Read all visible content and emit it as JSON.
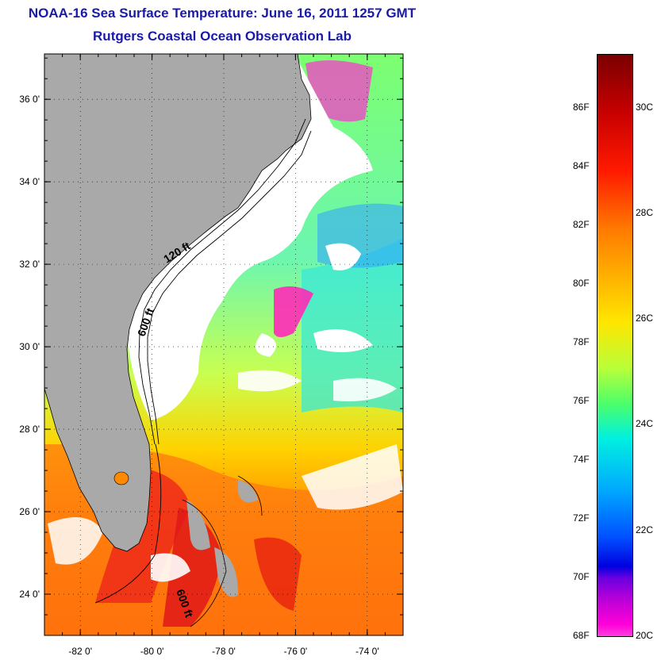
{
  "header": {
    "title": "NOAA-16 Sea Surface Temperature:  June 16, 2011 1257 GMT",
    "subtitle": "Rutgers Coastal Ocean Observation Lab"
  },
  "map": {
    "lat_range": [
      23,
      37.1
    ],
    "lon_range": [
      -83,
      -73
    ],
    "lat_ticks": [
      {
        "v": 36,
        "label": "36 0'"
      },
      {
        "v": 34,
        "label": "34 0'"
      },
      {
        "v": 32,
        "label": "32 0'"
      },
      {
        "v": 30,
        "label": "30 0'"
      },
      {
        "v": 28,
        "label": "28 0'"
      },
      {
        "v": 26,
        "label": "26 0'"
      },
      {
        "v": 24,
        "label": "24 0'"
      }
    ],
    "lon_ticks": [
      {
        "v": -82,
        "label": "-82 0'"
      },
      {
        "v": -80,
        "label": "-80 0'"
      },
      {
        "v": -78,
        "label": "-78 0'"
      },
      {
        "v": -76,
        "label": "-76 0'"
      },
      {
        "v": -74,
        "label": "-74 0'"
      }
    ],
    "contour_labels": [
      "120 ft",
      "600 ft",
      "600 ft"
    ],
    "grid": "dotted",
    "colors": {
      "land": "#a9a9a9",
      "cloud": "#ffffff",
      "contour": "#000000"
    }
  },
  "colorbar": {
    "fahrenheit_labels": [
      "86F",
      "84F",
      "82F",
      "80F",
      "78F",
      "76F",
      "74F",
      "72F",
      "70F",
      "68F"
    ],
    "celsius_labels": [
      "30C",
      "28C",
      "26C",
      "24C",
      "22C",
      "20C"
    ],
    "range_c": [
      20,
      31
    ]
  }
}
